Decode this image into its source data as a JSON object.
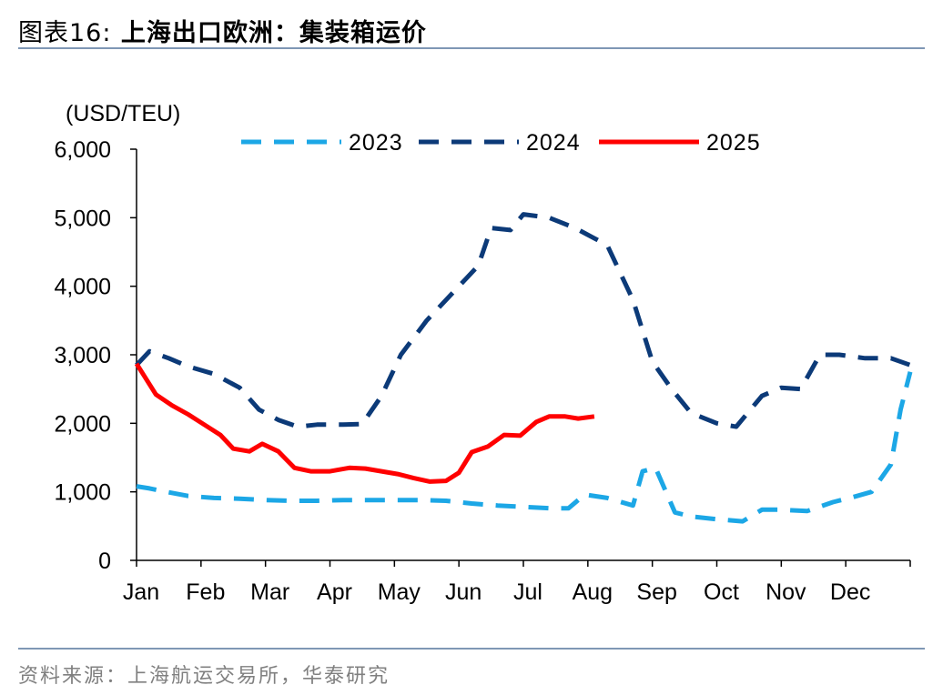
{
  "header": {
    "prefix": "图表16:",
    "title": "上海出口欧洲：集装箱运价"
  },
  "footer": {
    "source": "资料来源：上海航运交易所，华泰研究"
  },
  "chart_data": {
    "type": "line",
    "ylabel": "(USD/TEU)",
    "ylim": [
      0,
      6000
    ],
    "yticks": [
      "0",
      "1,000",
      "2,000",
      "3,000",
      "4,000",
      "5,000",
      "6,000"
    ],
    "ytick_values": [
      0,
      1000,
      2000,
      3000,
      4000,
      5000,
      6000
    ],
    "xlim": [
      0,
      12
    ],
    "xticks": [
      "Jan",
      "Feb",
      "Mar",
      "Apr",
      "May",
      "Jun",
      "Jul",
      "Aug",
      "Sep",
      "Oct",
      "Nov",
      "Dec"
    ],
    "legend_position": "top",
    "series": [
      {
        "name": "2023",
        "color": "#1ca7e6",
        "style": "dashed",
        "points": [
          [
            0.0,
            1080
          ],
          [
            0.2,
            1050
          ],
          [
            0.4,
            1010
          ],
          [
            0.8,
            940
          ],
          [
            1.2,
            910
          ],
          [
            1.6,
            900
          ],
          [
            2.0,
            880
          ],
          [
            2.4,
            870
          ],
          [
            2.8,
            870
          ],
          [
            3.2,
            880
          ],
          [
            3.6,
            880
          ],
          [
            4.0,
            880
          ],
          [
            4.4,
            880
          ],
          [
            4.8,
            870
          ],
          [
            5.2,
            830
          ],
          [
            5.6,
            800
          ],
          [
            6.0,
            780
          ],
          [
            6.4,
            760
          ],
          [
            6.7,
            760
          ],
          [
            6.95,
            960
          ],
          [
            7.3,
            910
          ],
          [
            7.7,
            800
          ],
          [
            7.85,
            1300
          ],
          [
            8.05,
            1350
          ],
          [
            8.35,
            700
          ],
          [
            8.6,
            640
          ],
          [
            9.0,
            600
          ],
          [
            9.4,
            570
          ],
          [
            9.7,
            740
          ],
          [
            10.0,
            740
          ],
          [
            10.4,
            720
          ],
          [
            10.8,
            850
          ],
          [
            11.1,
            920
          ],
          [
            11.4,
            1000
          ],
          [
            11.7,
            1400
          ],
          [
            11.85,
            2200
          ],
          [
            12.0,
            2750
          ]
        ]
      },
      {
        "name": "2024",
        "color": "#0c3a78",
        "style": "dashed",
        "points": [
          [
            0.0,
            2850
          ],
          [
            0.2,
            3050
          ],
          [
            0.5,
            2950
          ],
          [
            0.8,
            2830
          ],
          [
            1.2,
            2720
          ],
          [
            1.6,
            2520
          ],
          [
            1.9,
            2200
          ],
          [
            2.2,
            2050
          ],
          [
            2.5,
            1950
          ],
          [
            2.8,
            1980
          ],
          [
            3.2,
            1980
          ],
          [
            3.5,
            1990
          ],
          [
            3.8,
            2400
          ],
          [
            4.1,
            3000
          ],
          [
            4.5,
            3500
          ],
          [
            4.9,
            3900
          ],
          [
            5.3,
            4300
          ],
          [
            5.5,
            4850
          ],
          [
            5.8,
            4820
          ],
          [
            6.0,
            5050
          ],
          [
            6.4,
            5000
          ],
          [
            6.8,
            4850
          ],
          [
            7.1,
            4700
          ],
          [
            7.3,
            4600
          ],
          [
            7.7,
            3800
          ],
          [
            8.0,
            2900
          ],
          [
            8.3,
            2500
          ],
          [
            8.6,
            2150
          ],
          [
            9.0,
            2000
          ],
          [
            9.3,
            1950
          ],
          [
            9.7,
            2400
          ],
          [
            10.0,
            2520
          ],
          [
            10.3,
            2500
          ],
          [
            10.6,
            3000
          ],
          [
            10.9,
            3000
          ],
          [
            11.3,
            2950
          ],
          [
            11.7,
            2950
          ],
          [
            12.0,
            2850
          ]
        ]
      },
      {
        "name": "2025",
        "color": "#ff0000",
        "style": "solid",
        "points": [
          [
            0.0,
            2870
          ],
          [
            0.3,
            2420
          ],
          [
            0.55,
            2260
          ],
          [
            0.8,
            2130
          ],
          [
            1.05,
            1980
          ],
          [
            1.3,
            1830
          ],
          [
            1.5,
            1630
          ],
          [
            1.75,
            1590
          ],
          [
            1.95,
            1700
          ],
          [
            2.2,
            1590
          ],
          [
            2.45,
            1350
          ],
          [
            2.7,
            1300
          ],
          [
            3.0,
            1300
          ],
          [
            3.3,
            1350
          ],
          [
            3.55,
            1340
          ],
          [
            3.8,
            1300
          ],
          [
            4.05,
            1260
          ],
          [
            4.3,
            1200
          ],
          [
            4.55,
            1150
          ],
          [
            4.8,
            1160
          ],
          [
            5.0,
            1280
          ],
          [
            5.2,
            1580
          ],
          [
            5.45,
            1660
          ],
          [
            5.7,
            1830
          ],
          [
            5.95,
            1820
          ],
          [
            6.2,
            2020
          ],
          [
            6.4,
            2100
          ],
          [
            6.65,
            2100
          ],
          [
            6.85,
            2070
          ],
          [
            7.1,
            2100
          ]
        ]
      }
    ]
  }
}
